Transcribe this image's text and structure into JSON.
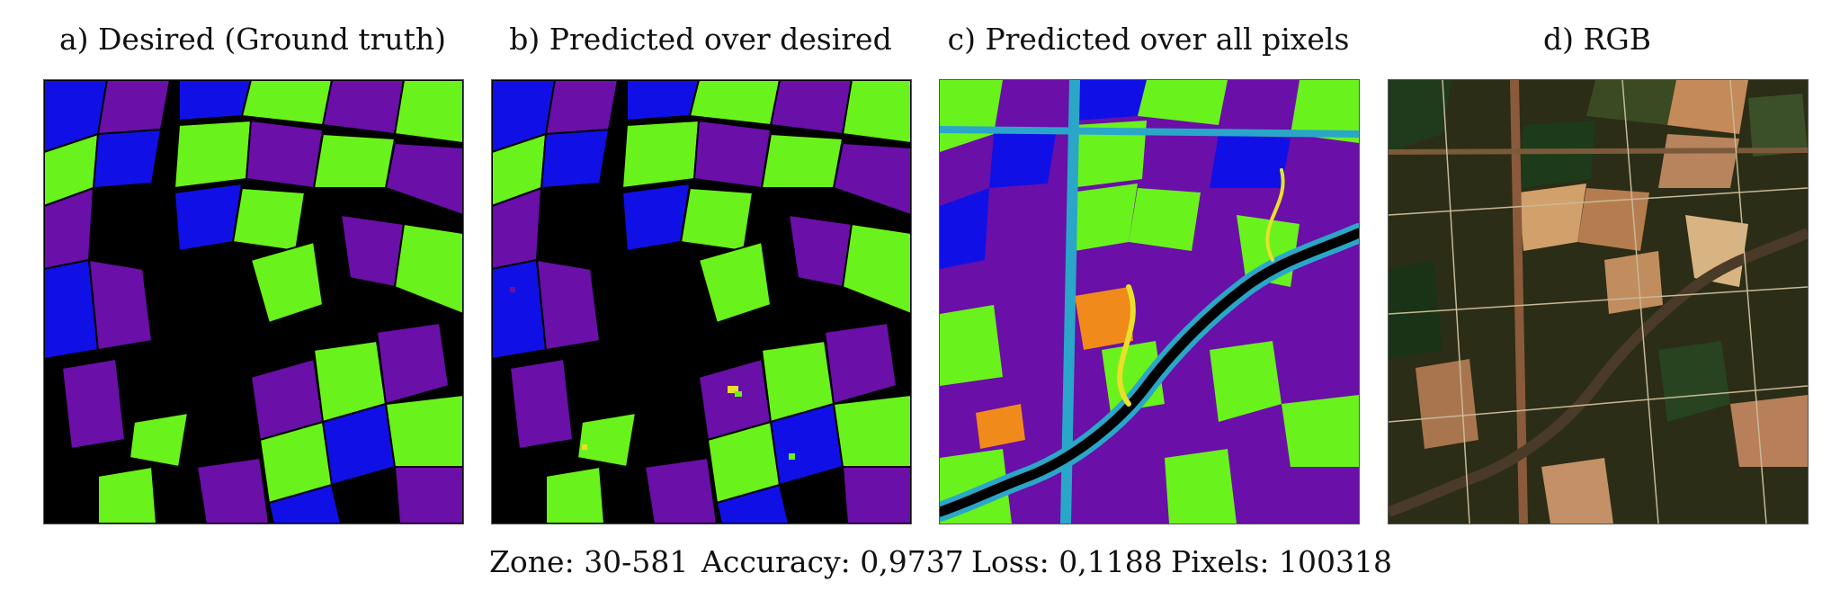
{
  "panels": [
    {
      "title": "a) Desired (Ground truth)"
    },
    {
      "title": "b) Predicted over desired"
    },
    {
      "title": "c) Predicted over all pixels"
    },
    {
      "title": "d) RGB"
    }
  ],
  "stats": {
    "zone": "Zone: 30-581",
    "accuracy": "Accuracy: 0,9737",
    "loss": "Loss: 0,1188",
    "pixels": "Pixels: 100318"
  },
  "colors": {
    "background": "#000000",
    "class_purple": "#6a0fa8",
    "class_blue": "#1010e6",
    "class_green": "#6af21c",
    "class_cyan": "#2aa7c8",
    "class_yellow": "#e8e02a",
    "class_orange": "#f08a1a"
  }
}
